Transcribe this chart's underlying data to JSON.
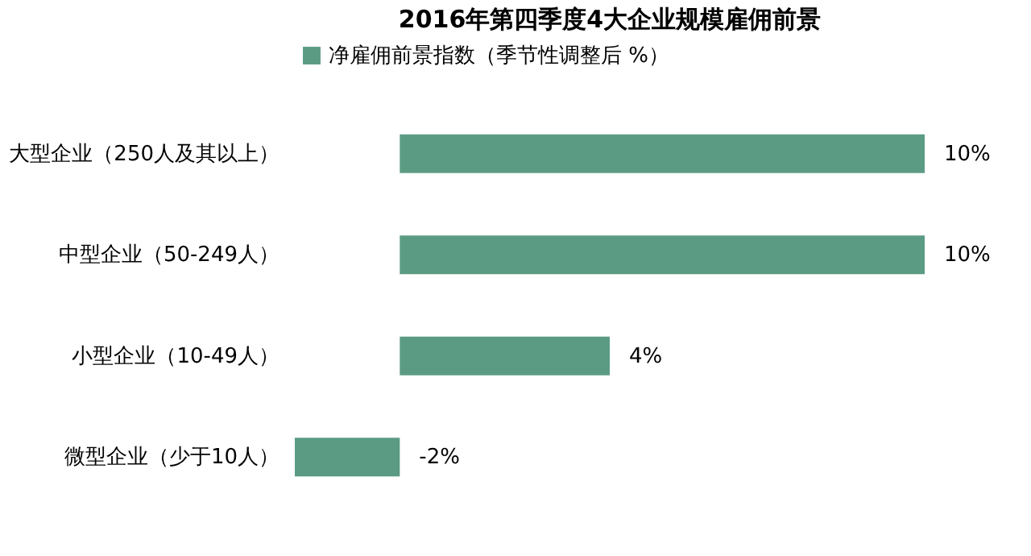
{
  "chart_data": {
    "type": "bar",
    "orientation": "horizontal",
    "title": "2016年第四季度4大企业规模雇佣前景",
    "categories": [
      "大型企业（250人及其以上）",
      "中型企业（50-249人）",
      "小型企业（10-49人）",
      "微型企业（少于10人）"
    ],
    "series": [
      {
        "name": "净雇佣前景指数（季节性调整后 %）",
        "color": "#5b9b83",
        "values": [
          10,
          10,
          4,
          -2
        ],
        "value_labels": [
          "10%",
          "10%",
          "4%",
          "-2%"
        ]
      }
    ],
    "legend": "top",
    "tick_labels": "y"
  }
}
